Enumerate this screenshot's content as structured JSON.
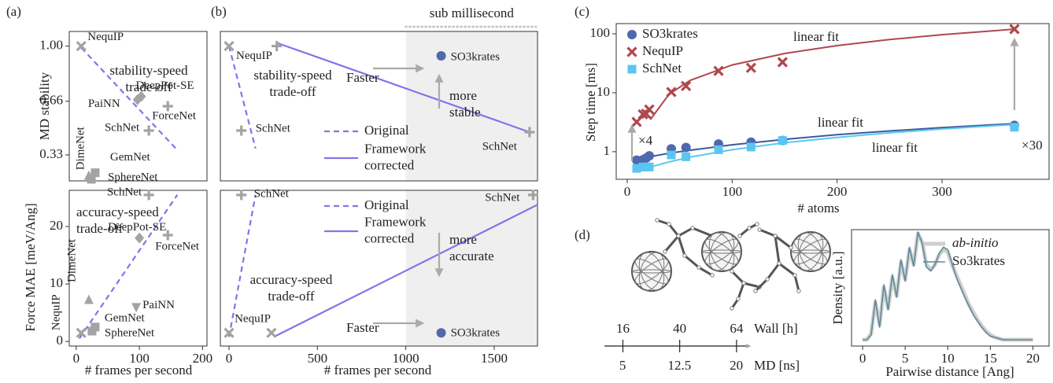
{
  "chart_data": [
    {
      "type": "scatter",
      "panel_label": "(a)",
      "ylabel": "MD stability",
      "xlim": [
        -11,
        207
      ],
      "ylim": [
        0.17,
        1.09
      ],
      "yticks": [
        0.33,
        0.66,
        {
          "value": 1,
          "label": "1.00"
        }
      ],
      "x": [
        8,
        97,
        103,
        145,
        115,
        20,
        30,
        24
      ],
      "values": [
        1.0,
        0.67,
        0.69,
        0.63,
        0.48,
        0.2,
        0.22,
        0.18
      ],
      "point_labels": [
        "NequIP",
        "PaiNN",
        "DeepPot-SE",
        "ForceNet",
        "SchNet",
        "DimeNet",
        "GemNet",
        "SphereNet"
      ],
      "markers": [
        "x",
        "diamond",
        "diamond",
        "plus",
        "plus",
        "tri-up",
        "square",
        "square"
      ],
      "color": "#a3a3a3",
      "lines": [
        {
          "x": [
            8,
            160
          ],
          "values": [
            0.99,
            0.36
          ],
          "dash": true,
          "color": "#8573e8"
        }
      ],
      "annotations": [
        [
          "stability-speed",
          "trade-off"
        ]
      ]
    },
    {
      "type": "scatter",
      "ylabel": "Force MAE [meV/Ang]",
      "xlabel": "# frames per second",
      "xlim": [
        -11,
        207
      ],
      "ylim": [
        -0.8,
        26.3
      ],
      "xticks": [
        0,
        100,
        200
      ],
      "yticks": [
        0,
        10,
        20
      ],
      "x": [
        115,
        100,
        145,
        20,
        95,
        8,
        30,
        25
      ],
      "values": [
        25.5,
        18,
        18.5,
        7.2,
        6,
        1.5,
        2.5,
        1.8
      ],
      "point_labels": [
        "SchNet",
        "DeepPot-SE",
        "ForceNet",
        "DimeNet",
        "PaiNN",
        "NequIP",
        "GemNet",
        "SphereNet"
      ],
      "markers": [
        "plus",
        "diamond",
        "plus",
        "tri-up",
        "tri-down",
        "x",
        "square",
        "square"
      ],
      "color": "#a3a3a3",
      "lines": [
        {
          "x": [
            5,
            160
          ],
          "values": [
            0.5,
            25.5
          ],
          "dash": true,
          "color": "#8573e8"
        }
      ],
      "annotations": [
        [
          "accuracy-speed",
          "trade-off"
        ]
      ]
    },
    {
      "type": "scatter",
      "panel_label": "(b)",
      "xlim": [
        -49,
        1745
      ],
      "ylim": [
        0.17,
        1.09
      ],
      "shade_from": 1000,
      "shade_label": "sub millisecond",
      "x": [
        0,
        270,
        70,
        1700,
        1200
      ],
      "values": [
        1.0,
        1.0,
        0.48,
        0.47,
        0.94
      ],
      "point_labels": [
        "NequIP",
        null,
        "SchNet",
        "SchNet",
        "SO3krates"
      ],
      "markers": [
        "x",
        "plus",
        "plus",
        "plus",
        "circle"
      ],
      "point_colors": [
        "#a3a3a3",
        "#a3a3a3",
        "#a3a3a3",
        "#a3a3a3",
        "#5068ad"
      ],
      "lines": [
        {
          "name": [
            "Original"
          ],
          "x": [
            0,
            150
          ],
          "values": [
            1.0,
            0.37
          ],
          "dash": true,
          "color": "#8573e8"
        },
        {
          "name": [
            "Framework",
            "corrected"
          ],
          "x": [
            270,
            1700
          ],
          "values": [
            1.02,
            0.47
          ],
          "dash": false,
          "color": "#8573e8"
        }
      ],
      "annotations": [
        [
          "Faster"
        ],
        [
          "more",
          "stable"
        ],
        [
          "stability-speed",
          "trade-off"
        ]
      ]
    },
    {
      "type": "scatter",
      "xlabel": "# frames per second",
      "xlim": [
        -49,
        1745
      ],
      "ylim": [
        -0.8,
        26.3
      ],
      "xticks": [
        0,
        500,
        1000,
        1500
      ],
      "shade_from": 1000,
      "x": [
        0,
        240,
        70,
        1720,
        1200
      ],
      "values": [
        1.5,
        1.5,
        25.5,
        25.5,
        1.5
      ],
      "point_labels": [
        null,
        "NequIP",
        "SchNet",
        "SchNet",
        "SO3krates"
      ],
      "markers": [
        "x",
        "x",
        "plus",
        "plus",
        "circle"
      ],
      "point_colors": [
        "#a3a3a3",
        "#a3a3a3",
        "#a3a3a3",
        "#a3a3a3",
        "#5068ad"
      ],
      "lines": [
        {
          "name": [
            "Original"
          ],
          "x": [
            0,
            150
          ],
          "values": [
            0.8,
            25.5
          ],
          "dash": true,
          "color": "#8573e8"
        },
        {
          "name": [
            "Framework",
            "corrected"
          ],
          "x": [
            260,
            1745
          ],
          "values": [
            0.9,
            23.8
          ],
          "dash": false,
          "color": "#8573e8"
        }
      ],
      "annotations": [
        [
          "more",
          "accurate"
        ],
        [
          "Faster"
        ],
        [
          "accuracy-speed",
          "trade-off"
        ]
      ]
    },
    {
      "type": "scatter",
      "panel_label": "(c)",
      "ylabel": "Step time [ms]",
      "xlabel": "# atoms",
      "log_y": true,
      "xlim": [
        -10.5,
        402
      ],
      "ylim": [
        0.34,
        149
      ],
      "xticks": [
        0,
        100,
        200,
        300
      ],
      "yticks": [
        1,
        10,
        100
      ],
      "legend": "upper left",
      "x": [
        9,
        15,
        18,
        21,
        42,
        56,
        87,
        118,
        148,
        369
      ],
      "series": [
        {
          "name": "SO3krates",
          "color": "#5068ad",
          "marker": "circle",
          "values": [
            0.72,
            0.73,
            0.78,
            0.85,
            1.12,
            1.18,
            1.35,
            1.45,
            1.55,
            2.8
          ]
        },
        {
          "name": "NequIP",
          "color": "#b0474f",
          "marker": "x",
          "values": [
            3.2,
            4.3,
            4.4,
            5.2,
            10.3,
            13,
            23.5,
            26.5,
            33,
            120
          ]
        },
        {
          "name": "SchNet",
          "color": "#5bc5f2",
          "marker": "square",
          "values": [
            0.52,
            0.55,
            0.55,
            0.55,
            0.88,
            0.82,
            1.08,
            1.2,
            1.55,
            2.6
          ]
        }
      ],
      "fits": [
        {
          "label": "linear fit",
          "color": "#b0474f",
          "x": [
            22,
            40,
            60,
            100,
            150,
            200,
            250,
            300,
            370
          ],
          "values": [
            3.5,
            9.5,
            16.2,
            29.6,
            46.3,
            63.1,
            79.8,
            96.6,
            120
          ]
        },
        {
          "label": "linear fit",
          "color": "#3d5a9a",
          "x": [
            9,
            40,
            60,
            100,
            150,
            200,
            250,
            300,
            370
          ],
          "values": [
            0.75,
            0.94,
            1.06,
            1.31,
            1.62,
            1.94,
            2.25,
            2.56,
            3.0
          ]
        },
        {
          "label": "linear fit",
          "color": "#5ac8f0",
          "x": [
            22,
            40,
            60,
            100,
            150,
            200,
            250,
            300,
            370
          ],
          "values": [
            0.55,
            0.67,
            0.81,
            1.08,
            1.42,
            1.75,
            2.09,
            2.43,
            2.9
          ]
        }
      ],
      "annotations": [
        [
          "×4"
        ],
        [
          "×30"
        ]
      ]
    },
    {
      "type": "timeline",
      "panel_label": "(d)",
      "xlim": [
        8.2,
        69.7
      ],
      "xticks": [
        16,
        40,
        64
      ],
      "xlabel": "Wall [h]",
      "x2lim": [
        2.6,
        21.8
      ],
      "x2ticks": [
        5,
        12.5,
        20
      ],
      "x2label": "MD [ns]"
    },
    {
      "type": "line",
      "ylabel": "Density [a.u.]",
      "xlabel": "Pairwise distance [Ang]",
      "xlim": [
        -1.3,
        21.9
      ],
      "ylim": [
        -0.05,
        0.88
      ],
      "xticks": [
        0,
        5,
        10,
        15,
        20
      ],
      "legend": "upper right",
      "x": [
        0,
        0.5,
        1,
        1.5,
        2,
        2.5,
        3,
        3.5,
        4,
        4.5,
        5,
        5.5,
        6,
        6.5,
        7,
        7.5,
        8,
        8.5,
        9,
        9.5,
        10,
        10.5,
        11,
        11.5,
        12,
        12.5,
        13,
        13.5,
        14,
        14.5,
        15,
        15.5,
        16,
        16.5,
        17,
        17.5,
        18,
        18.5,
        19,
        19.5,
        20
      ],
      "series": [
        {
          "name": "ab-initio",
          "style": "italic",
          "color": "#cfcfcf",
          "width": 5,
          "values": [
            0,
            0,
            0.05,
            0.3,
            0.12,
            0.42,
            0.25,
            0.5,
            0.35,
            0.62,
            0.48,
            0.72,
            0.6,
            0.85,
            0.78,
            0.6,
            0.56,
            0.6,
            0.68,
            0.72,
            0.7,
            0.6,
            0.52,
            0.44,
            0.36,
            0.28,
            0.22,
            0.16,
            0.11,
            0.07,
            0.04,
            0.02,
            0.01,
            0,
            0,
            0,
            0,
            0,
            0,
            0,
            0
          ]
        },
        {
          "name": "So3krates",
          "style": "normal",
          "color": "#5f8a9a",
          "width": 1.6,
          "values": [
            0,
            0,
            0.04,
            0.32,
            0.1,
            0.44,
            0.24,
            0.52,
            0.34,
            0.64,
            0.47,
            0.74,
            0.59,
            0.86,
            0.77,
            0.58,
            0.55,
            0.6,
            0.69,
            0.74,
            0.72,
            0.61,
            0.5,
            0.42,
            0.34,
            0.27,
            0.2,
            0.15,
            0.1,
            0.06,
            0.03,
            0.02,
            0.01,
            0,
            0,
            0,
            0,
            0,
            0,
            0,
            0
          ]
        }
      ]
    }
  ]
}
